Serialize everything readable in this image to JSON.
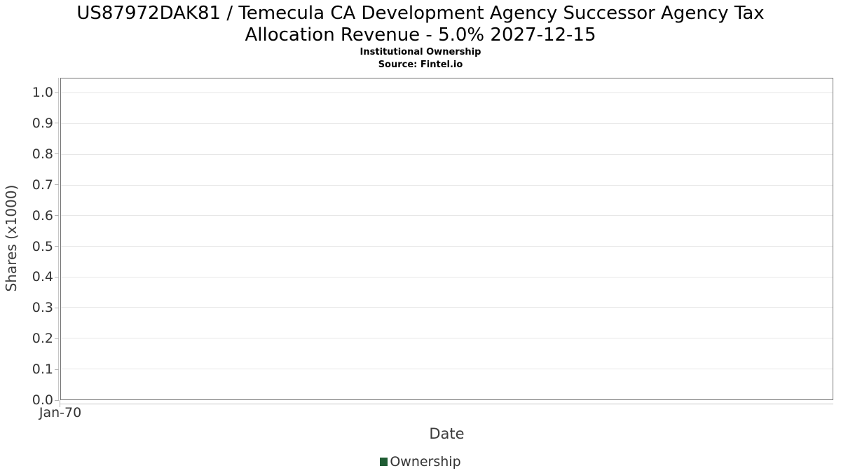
{
  "chart_data": {
    "type": "line",
    "title": "US87972DAK81 / Temecula CA Development Agency Successor Agency Tax Allocation Revenue - 5.0% 2027-12-15",
    "title_lines": [
      "US87972DAK81 / Temecula CA Development Agency Successor Agency Tax",
      "Allocation Revenue - 5.0% 2027-12-15"
    ],
    "subtitle": "Institutional Ownership",
    "source": "Source: Fintel.io",
    "xlabel": "Date",
    "ylabel": "Shares (x1000)",
    "y_tick_labels": [
      "0.0",
      "0.1",
      "0.2",
      "0.3",
      "0.4",
      "0.5",
      "0.6",
      "0.7",
      "0.8",
      "0.9",
      "1.0"
    ],
    "ylim": [
      0,
      1.048
    ],
    "x_tick_labels": [
      "Jan-70"
    ],
    "x_tick_positions": [
      0
    ],
    "grid": "horizontal",
    "legend_position": "bottom-center",
    "series": [
      {
        "name": "Ownership",
        "color": "#1f5c33",
        "x": [],
        "values": []
      }
    ]
  },
  "colors": {
    "plot_border": "#757575",
    "gridline": "#e7e7e7",
    "axis_line": "#c6c6c6",
    "legend_swatch": "#1f5c33"
  }
}
